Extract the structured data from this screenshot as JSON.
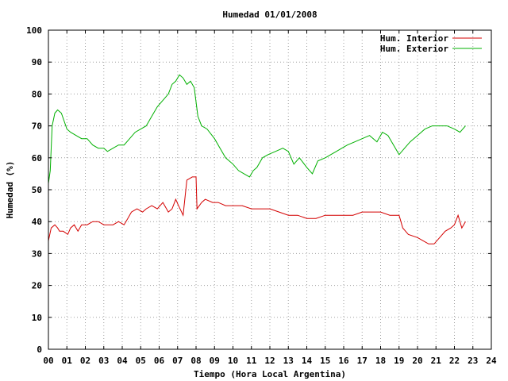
{
  "chart_data": {
    "type": "line",
    "title": "Humedad 01/01/2008",
    "xlabel": "Tiempo (Hora Local Argentina)",
    "ylabel": "Humedad (%)",
    "xlim": [
      0,
      24
    ],
    "ylim": [
      0,
      100
    ],
    "grid": true,
    "legend_position": "top-right",
    "x_tick_labels": [
      "00",
      "01",
      "02",
      "03",
      "04",
      "05",
      "06",
      "07",
      "08",
      "09",
      "10",
      "11",
      "12",
      "13",
      "14",
      "15",
      "16",
      "17",
      "18",
      "19",
      "20",
      "21",
      "22",
      "23",
      "24"
    ],
    "y_tick_labels": [
      "0",
      "10",
      "20",
      "30",
      "40",
      "50",
      "60",
      "70",
      "80",
      "90",
      "100"
    ],
    "series": [
      {
        "name": "Hum. Interior",
        "color": "#d40000",
        "x": [
          0.0,
          0.15,
          0.35,
          0.5,
          0.6,
          0.8,
          1.05,
          1.2,
          1.4,
          1.6,
          1.8,
          2.1,
          2.4,
          2.7,
          3.0,
          3.2,
          3.5,
          3.8,
          4.1,
          4.3,
          4.5,
          4.8,
          5.1,
          5.3,
          5.6,
          5.9,
          6.2,
          6.5,
          6.7,
          6.9,
          7.05,
          7.3,
          7.5,
          7.8,
          8.0,
          8.05,
          8.3,
          8.5,
          8.9,
          9.2,
          9.6,
          10.0,
          10.5,
          11.0,
          11.5,
          12.0,
          12.5,
          13.0,
          13.5,
          14.0,
          14.5,
          15.0,
          15.5,
          16.0,
          16.5,
          17.0,
          17.5,
          18.0,
          18.5,
          19.0,
          19.2,
          19.5,
          20.0,
          20.3,
          20.6,
          20.9,
          21.2,
          21.5,
          21.8,
          22.0,
          22.2,
          22.4,
          22.6
        ],
        "values": [
          34,
          38,
          39,
          38,
          37,
          37,
          36,
          38,
          39,
          37,
          39,
          39,
          40,
          40,
          39,
          39,
          39,
          40,
          39,
          41,
          43,
          44,
          43,
          44,
          45,
          44,
          46,
          43,
          44,
          47,
          45,
          42,
          53,
          54,
          54,
          44,
          46,
          47,
          46,
          46,
          45,
          45,
          45,
          44,
          44,
          44,
          43,
          42,
          42,
          41,
          41,
          42,
          42,
          42,
          42,
          43,
          43,
          43,
          42,
          42,
          38,
          36,
          35,
          34,
          33,
          33,
          35,
          37,
          38,
          39,
          42,
          38,
          40
        ]
      },
      {
        "name": "Hum. Exterior",
        "color": "#00b000",
        "x": [
          0.0,
          0.1,
          0.2,
          0.35,
          0.5,
          0.7,
          1.0,
          1.2,
          1.5,
          1.8,
          2.1,
          2.4,
          2.7,
          3.0,
          3.2,
          3.5,
          3.8,
          4.1,
          4.4,
          4.7,
          5.0,
          5.3,
          5.6,
          5.9,
          6.2,
          6.5,
          6.7,
          6.9,
          7.1,
          7.3,
          7.5,
          7.7,
          7.9,
          8.1,
          8.3,
          8.6,
          9.0,
          9.3,
          9.6,
          10.0,
          10.3,
          10.6,
          10.9,
          11.1,
          11.3,
          11.6,
          11.9,
          12.3,
          12.7,
          13.0,
          13.3,
          13.6,
          14.0,
          14.3,
          14.6,
          15.0,
          15.3,
          15.6,
          15.9,
          16.2,
          16.6,
          17.0,
          17.4,
          17.8,
          18.1,
          18.4,
          18.7,
          19.0,
          19.3,
          19.6,
          20.0,
          20.4,
          20.8,
          21.2,
          21.6,
          22.0,
          22.3,
          22.6
        ],
        "values": [
          52,
          56,
          70,
          74,
          75,
          74,
          69,
          68,
          67,
          66,
          66,
          64,
          63,
          63,
          62,
          63,
          64,
          64,
          66,
          68,
          69,
          70,
          73,
          76,
          78,
          80,
          83,
          84,
          86,
          85,
          83,
          84,
          82,
          73,
          70,
          69,
          66,
          63,
          60,
          58,
          56,
          55,
          54,
          56,
          57,
          60,
          61,
          62,
          63,
          62,
          58,
          60,
          57,
          55,
          59,
          60,
          61,
          62,
          63,
          64,
          65,
          66,
          67,
          65,
          68,
          67,
          64,
          61,
          63,
          65,
          67,
          69,
          70,
          70,
          70,
          69,
          68,
          70
        ]
      }
    ]
  }
}
